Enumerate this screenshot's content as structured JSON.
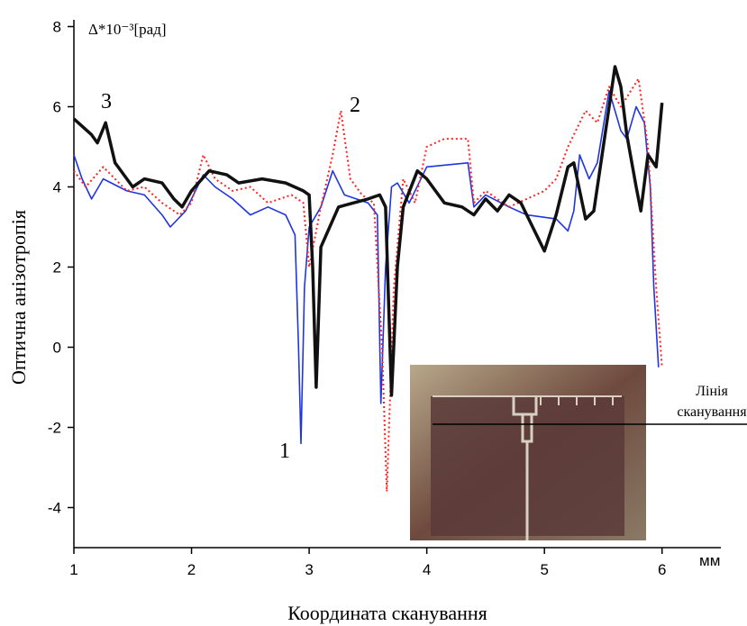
{
  "chart_data": {
    "type": "line",
    "x_label": "Координата сканування",
    "y_label": "Оптична анізотропія",
    "y_unit": "Δ*10⁻³[рад]",
    "x_unit": "мм",
    "xlim": [
      1,
      6.5
    ],
    "ylim": [
      -5,
      8
    ],
    "xticks": [
      1,
      2,
      3,
      4,
      5,
      6
    ],
    "yticks": [
      -4,
      -2,
      0,
      2,
      4,
      6,
      8
    ],
    "inset_label": [
      "Лінія",
      "сканування"
    ],
    "series": [
      {
        "name": "1",
        "color": "#1f35e0",
        "width": 1.6,
        "dash": "none",
        "x": [
          1.0,
          1.07,
          1.15,
          1.25,
          1.45,
          1.6,
          1.75,
          1.82,
          1.95,
          2.1,
          2.2,
          2.35,
          2.5,
          2.65,
          2.8,
          2.88,
          2.91,
          2.93,
          2.96,
          3.0,
          3.1,
          3.2,
          3.3,
          3.5,
          3.58,
          3.61,
          3.65,
          3.7,
          3.75,
          3.85,
          4.0,
          4.35,
          4.4,
          4.5,
          4.7,
          4.85,
          5.1,
          5.2,
          5.25,
          5.3,
          5.38,
          5.45,
          5.55,
          5.65,
          5.7,
          5.78,
          5.85,
          5.9,
          5.93,
          5.97
        ],
        "values": [
          4.8,
          4.2,
          3.7,
          4.2,
          3.9,
          3.8,
          3.3,
          3.0,
          3.4,
          4.3,
          4.0,
          3.7,
          3.3,
          3.5,
          3.3,
          2.8,
          0,
          -2.4,
          1.5,
          3.0,
          3.5,
          4.4,
          3.8,
          3.6,
          3.3,
          -1.4,
          2.0,
          4.0,
          4.1,
          3.6,
          4.5,
          4.6,
          3.5,
          3.8,
          3.5,
          3.3,
          3.2,
          2.9,
          3.4,
          4.8,
          4.2,
          4.6,
          6.4,
          5.4,
          5.2,
          6.0,
          5.6,
          4.0,
          1.5,
          -0.5
        ]
      },
      {
        "name": "2",
        "color": "#ff2222",
        "width": 2,
        "dash": "2 3",
        "x": [
          1.0,
          1.1,
          1.25,
          1.45,
          1.6,
          1.75,
          1.9,
          2.0,
          2.1,
          2.2,
          2.35,
          2.5,
          2.65,
          2.85,
          2.95,
          3.0,
          3.1,
          3.2,
          3.27,
          3.35,
          3.45,
          3.55,
          3.62,
          3.66,
          3.72,
          3.8,
          3.9,
          4.0,
          4.15,
          4.35,
          4.4,
          4.5,
          4.7,
          4.85,
          5.0,
          5.1,
          5.2,
          5.35,
          5.45,
          5.55,
          5.65,
          5.8,
          5.88,
          5.95,
          6.0
        ],
        "values": [
          4.4,
          4.0,
          4.5,
          3.9,
          4.0,
          3.6,
          3.3,
          3.6,
          4.8,
          4.2,
          3.9,
          4.0,
          3.6,
          3.8,
          3.6,
          2.0,
          3.5,
          4.8,
          5.9,
          4.2,
          3.8,
          3.6,
          0,
          -3.6,
          1.5,
          4.2,
          3.6,
          5.0,
          5.2,
          5.2,
          3.6,
          3.9,
          3.5,
          3.7,
          3.9,
          4.2,
          5.0,
          5.9,
          5.6,
          6.5,
          6.0,
          6.7,
          5.0,
          1.5,
          -0.5
        ]
      },
      {
        "name": "3",
        "color": "#111111",
        "width": 3.5,
        "dash": "none",
        "x": [
          1.0,
          1.15,
          1.2,
          1.27,
          1.35,
          1.5,
          1.6,
          1.75,
          1.85,
          1.92,
          2.0,
          2.15,
          2.3,
          2.4,
          2.6,
          2.8,
          2.95,
          3.0,
          3.03,
          3.06,
          3.1,
          3.25,
          3.5,
          3.6,
          3.65,
          3.7,
          3.75,
          3.8,
          3.92,
          4.0,
          4.15,
          4.3,
          4.4,
          4.5,
          4.6,
          4.7,
          4.8,
          4.9,
          5.0,
          5.1,
          5.2,
          5.25,
          5.35,
          5.42,
          5.5,
          5.6,
          5.65,
          5.7,
          5.78,
          5.82,
          5.88,
          5.95,
          6.0
        ],
        "values": [
          5.7,
          5.3,
          5.1,
          5.6,
          4.6,
          4.0,
          4.2,
          4.1,
          3.7,
          3.5,
          3.9,
          4.4,
          4.3,
          4.1,
          4.2,
          4.1,
          3.9,
          3.8,
          2.0,
          -1.0,
          2.5,
          3.5,
          3.7,
          3.8,
          3.5,
          -1.2,
          2.0,
          3.5,
          4.4,
          4.2,
          3.6,
          3.5,
          3.3,
          3.7,
          3.4,
          3.8,
          3.6,
          3.0,
          2.4,
          3.3,
          4.5,
          4.6,
          3.2,
          3.4,
          5.0,
          7.0,
          6.5,
          5.3,
          4.0,
          3.4,
          4.8,
          4.5,
          6.1
        ]
      }
    ]
  }
}
